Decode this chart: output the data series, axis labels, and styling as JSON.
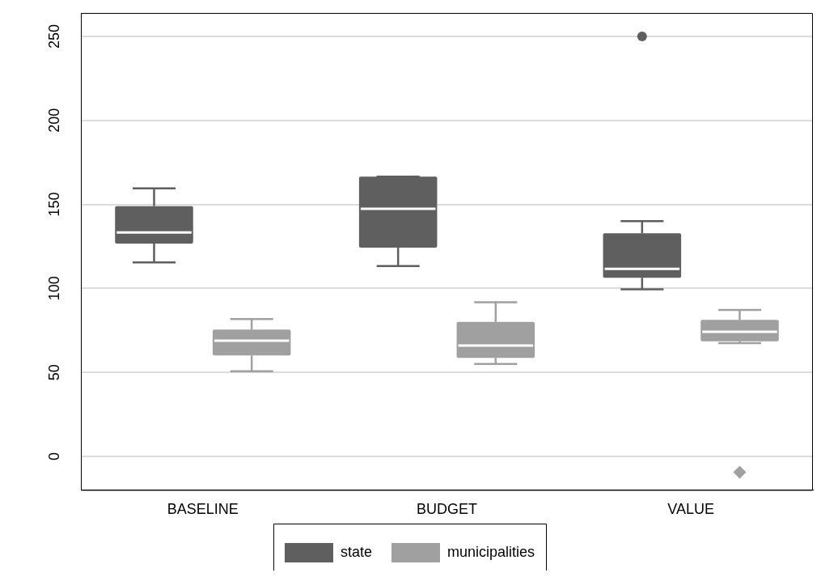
{
  "chart_data": {
    "type": "box",
    "categories": [
      "BASELINE",
      "BUDGET",
      "VALUE"
    ],
    "series": [
      {
        "name": "state",
        "color": "#5f5f5f",
        "marker": "circle",
        "boxes": [
          {
            "low": 115.5,
            "q1": 126.7,
            "median": 133.3,
            "q3": 149,
            "high": 159.6
          },
          {
            "low": 113.3,
            "q1": 124.3,
            "median": 147.4,
            "q3": 166.5,
            "high": 166.5
          },
          {
            "low": 99.5,
            "q1": 106.3,
            "median": 111.6,
            "q3": 132.8,
            "high": 140,
            "outliers": [
              250
            ]
          }
        ]
      },
      {
        "name": "municipalities",
        "color": "#a0a0a0",
        "marker": "diamond",
        "boxes": [
          {
            "low": 50.7,
            "q1": 60,
            "median": 68.9,
            "q3": 75.5,
            "high": 81.8
          },
          {
            "low": 55,
            "q1": 58.6,
            "median": 66,
            "q3": 80,
            "high": 91.7
          },
          {
            "low": 67.4,
            "q1": 68.5,
            "median": 74.2,
            "q3": 81.3,
            "high": 87.2,
            "outliers": [
              -9.5
            ]
          }
        ]
      }
    ],
    "ylim": [
      -20,
      264
    ],
    "yticks": [
      0,
      50,
      100,
      150,
      200,
      250
    ],
    "grid": "y",
    "legend": "bottom"
  }
}
